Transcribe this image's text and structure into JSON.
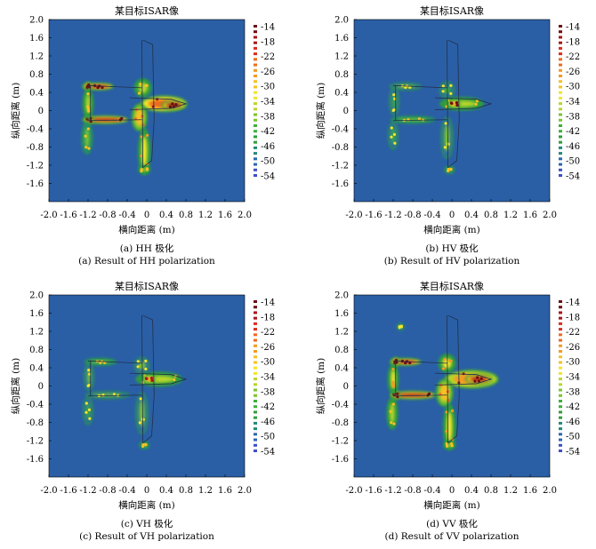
{
  "colors": {
    "background": "#2a5fa6",
    "outline": "#20304a",
    "colormap": [
      "#3a4fc8",
      "#2a66b4",
      "#1f8a78",
      "#2e9e3a",
      "#3cb039",
      "#7cc52e",
      "#b9d62a",
      "#f2e52b",
      "#f8c024",
      "#f59a22",
      "#ef6a1f",
      "#dd2b1c",
      "#a8161a",
      "#6e0c12"
    ]
  },
  "chart_data": [
    {
      "type": "heatmap",
      "title": "某目标ISAR像",
      "xlabel": "横向距离 (m)",
      "ylabel": "纵向距离 (m)",
      "xlim": [
        -2.0,
        2.0
      ],
      "ylim": [
        -2.0,
        2.0
      ],
      "xticks": [
        "-2.0",
        "-1.6",
        "-1.2",
        "-0.8",
        "-0.4",
        "0",
        "0.4",
        "0.8",
        "1.2",
        "1.6",
        "2.0"
      ],
      "yticks": [
        "2.0",
        "1.6",
        "1.2",
        "0.8",
        "0.4",
        "0",
        "-0.4",
        "-0.8",
        "-1.2",
        "-1.6",
        "-2.0"
      ],
      "colorbar_ticks": [
        "-14",
        "-18",
        "-22",
        "-26",
        "-30",
        "-34",
        "-38",
        "-42",
        "-46",
        "-50",
        "-54"
      ],
      "caption_cn": "(a) HH 极化",
      "caption_en": "(a) Result of HH polarization",
      "scatterers": [
        {
          "x": -1.0,
          "y": 0.53,
          "w": 0.55,
          "h": 0.06,
          "level": -20
        },
        {
          "x": -1.2,
          "y": 0.53,
          "w": 0.08,
          "h": 0.1,
          "level": -14
        },
        {
          "x": -0.85,
          "y": -0.2,
          "w": 0.85,
          "h": 0.08,
          "level": -16
        },
        {
          "x": -1.18,
          "y": -0.2,
          "w": 0.1,
          "h": 0.1,
          "level": -14
        },
        {
          "x": 0.35,
          "y": 0.15,
          "w": 0.85,
          "h": 0.25,
          "level": -24
        },
        {
          "x": 0.55,
          "y": 0.12,
          "w": 0.4,
          "h": 0.1,
          "level": -14
        },
        {
          "x": -0.15,
          "y": -0.15,
          "w": 0.22,
          "h": 0.5,
          "level": -30
        },
        {
          "x": -0.05,
          "y": -0.9,
          "w": 0.15,
          "h": 0.9,
          "level": -34
        },
        {
          "x": -0.08,
          "y": 0.5,
          "w": 0.25,
          "h": 0.3,
          "level": -36
        },
        {
          "x": -1.2,
          "y": 0.15,
          "w": 0.12,
          "h": 0.55,
          "level": -36
        },
        {
          "x": -1.22,
          "y": -0.6,
          "w": 0.12,
          "h": 0.6,
          "level": -38
        },
        {
          "x": -0.05,
          "y": -1.3,
          "w": 0.15,
          "h": 0.08,
          "level": -36
        }
      ]
    },
    {
      "type": "heatmap",
      "title": "某目标ISAR像",
      "xlabel": "横向距离 (m)",
      "ylabel": "纵向距离 (m)",
      "xlim": [
        -2.0,
        2.0
      ],
      "ylim": [
        -2.0,
        2.0
      ],
      "xticks": [
        "-2.0",
        "-1.6",
        "-1.2",
        "-0.8",
        "-0.4",
        "0",
        "0.4",
        "0.8",
        "1.2",
        "1.6",
        "2.0"
      ],
      "yticks": [
        "2.0",
        "1.6",
        "1.2",
        "0.8",
        "0.4",
        "0",
        "-0.4",
        "-0.8",
        "-1.2",
        "-1.6",
        "-2.0"
      ],
      "colorbar_ticks": [
        "-14",
        "-18",
        "-22",
        "-26",
        "-30",
        "-34",
        "-38",
        "-42",
        "-46",
        "-50",
        "-54"
      ],
      "caption_cn": "(b) HV 极化",
      "caption_en": "(b) Result of HV polarization",
      "scatterers": [
        {
          "x": -0.95,
          "y": 0.53,
          "w": 0.55,
          "h": 0.05,
          "level": -40
        },
        {
          "x": -0.8,
          "y": -0.2,
          "w": 0.8,
          "h": 0.05,
          "level": -38
        },
        {
          "x": 0.2,
          "y": 0.15,
          "w": 0.8,
          "h": 0.18,
          "level": -36
        },
        {
          "x": 0.05,
          "y": 0.15,
          "w": 0.15,
          "h": 0.08,
          "level": -22
        },
        {
          "x": -0.1,
          "y": -0.6,
          "w": 0.15,
          "h": 0.8,
          "level": -40
        },
        {
          "x": -1.18,
          "y": 0.2,
          "w": 0.1,
          "h": 0.5,
          "level": -42
        },
        {
          "x": -1.2,
          "y": -0.55,
          "w": 0.1,
          "h": 0.5,
          "level": -42
        },
        {
          "x": -0.1,
          "y": 0.45,
          "w": 0.2,
          "h": 0.25,
          "level": -42
        },
        {
          "x": -0.05,
          "y": -1.3,
          "w": 0.1,
          "h": 0.06,
          "level": -38
        }
      ]
    },
    {
      "type": "heatmap",
      "title": "某目标ISAR像",
      "xlabel": "横向距离 (m)",
      "ylabel": "纵向距离 (m)",
      "xlim": [
        -2.0,
        2.0
      ],
      "ylim": [
        -2.0,
        2.0
      ],
      "xticks": [
        "-2.0",
        "-1.6",
        "-1.2",
        "-0.8",
        "-0.4",
        "0",
        "0.4",
        "0.8",
        "1.2",
        "1.6",
        "2.0"
      ],
      "yticks": [
        "2.0",
        "1.6",
        "1.2",
        "0.8",
        "0.4",
        "0",
        "-0.4",
        "-0.8",
        "-1.2",
        "-1.6",
        "-2.0"
      ],
      "colorbar_ticks": [
        "-14",
        "-18",
        "-22",
        "-26",
        "-30",
        "-34",
        "-38",
        "-42",
        "-46",
        "-50",
        "-54"
      ],
      "caption_cn": "(c) VH 极化",
      "caption_en": "(c) Result of VH polarization",
      "scatterers": [
        {
          "x": -0.95,
          "y": 0.53,
          "w": 0.55,
          "h": 0.05,
          "level": -38
        },
        {
          "x": -0.8,
          "y": -0.2,
          "w": 0.8,
          "h": 0.05,
          "level": -40
        },
        {
          "x": 0.25,
          "y": 0.15,
          "w": 0.85,
          "h": 0.2,
          "level": -36
        },
        {
          "x": 0.05,
          "y": 0.15,
          "w": 0.15,
          "h": 0.08,
          "level": -24
        },
        {
          "x": -0.1,
          "y": -0.6,
          "w": 0.15,
          "h": 0.8,
          "level": -40
        },
        {
          "x": -1.18,
          "y": 0.2,
          "w": 0.1,
          "h": 0.5,
          "level": -40
        },
        {
          "x": -1.2,
          "y": -0.55,
          "w": 0.1,
          "h": 0.5,
          "level": -42
        },
        {
          "x": -0.1,
          "y": 0.45,
          "w": 0.2,
          "h": 0.25,
          "level": -40
        },
        {
          "x": -0.05,
          "y": -1.3,
          "w": 0.1,
          "h": 0.06,
          "level": -38
        }
      ]
    },
    {
      "type": "heatmap",
      "title": "某目标ISAR像",
      "xlabel": "横向距离 (m)",
      "ylabel": "纵向距离 (m)",
      "xlim": [
        -2.0,
        2.0
      ],
      "ylim": [
        -2.0,
        2.0
      ],
      "xticks": [
        "-2.0",
        "-1.6",
        "-1.2",
        "-0.8",
        "-0.4",
        "0",
        "0.4",
        "0.8",
        "1.2",
        "1.6",
        "2.0"
      ],
      "yticks": [
        "2.0",
        "1.6",
        "1.2",
        "0.8",
        "0.4",
        "0",
        "-0.4",
        "-0.8",
        "-1.2",
        "-1.6",
        "-2.0"
      ],
      "colorbar_ticks": [
        "-14",
        "-18",
        "-22",
        "-26",
        "-30",
        "-34",
        "-38",
        "-42",
        "-46",
        "-50",
        "-54"
      ],
      "caption_cn": "(d) VV 极化",
      "caption_en": "(d) Result of VV polarization",
      "scatterers": [
        {
          "x": -0.95,
          "y": 0.53,
          "w": 0.55,
          "h": 0.06,
          "level": -20
        },
        {
          "x": -1.15,
          "y": 0.53,
          "w": 0.08,
          "h": 0.1,
          "level": -14
        },
        {
          "x": -0.8,
          "y": -0.2,
          "w": 0.85,
          "h": 0.08,
          "level": -16
        },
        {
          "x": -1.15,
          "y": -0.2,
          "w": 0.1,
          "h": 0.1,
          "level": -14
        },
        {
          "x": 0.4,
          "y": 0.15,
          "w": 1.0,
          "h": 0.3,
          "level": -26
        },
        {
          "x": 0.55,
          "y": 0.15,
          "w": 0.45,
          "h": 0.12,
          "level": -18
        },
        {
          "x": -0.15,
          "y": -0.15,
          "w": 0.25,
          "h": 0.5,
          "level": -30
        },
        {
          "x": -0.05,
          "y": -0.9,
          "w": 0.15,
          "h": 0.9,
          "level": -34
        },
        {
          "x": -0.1,
          "y": 0.5,
          "w": 0.25,
          "h": 0.3,
          "level": -34
        },
        {
          "x": -1.2,
          "y": 0.15,
          "w": 0.12,
          "h": 0.55,
          "level": -34
        },
        {
          "x": -1.22,
          "y": -0.6,
          "w": 0.12,
          "h": 0.6,
          "level": -36
        },
        {
          "x": -1.05,
          "y": 1.3,
          "w": 0.05,
          "h": 0.05,
          "level": -40
        },
        {
          "x": -0.05,
          "y": -1.3,
          "w": 0.15,
          "h": 0.08,
          "level": -36
        }
      ]
    }
  ]
}
